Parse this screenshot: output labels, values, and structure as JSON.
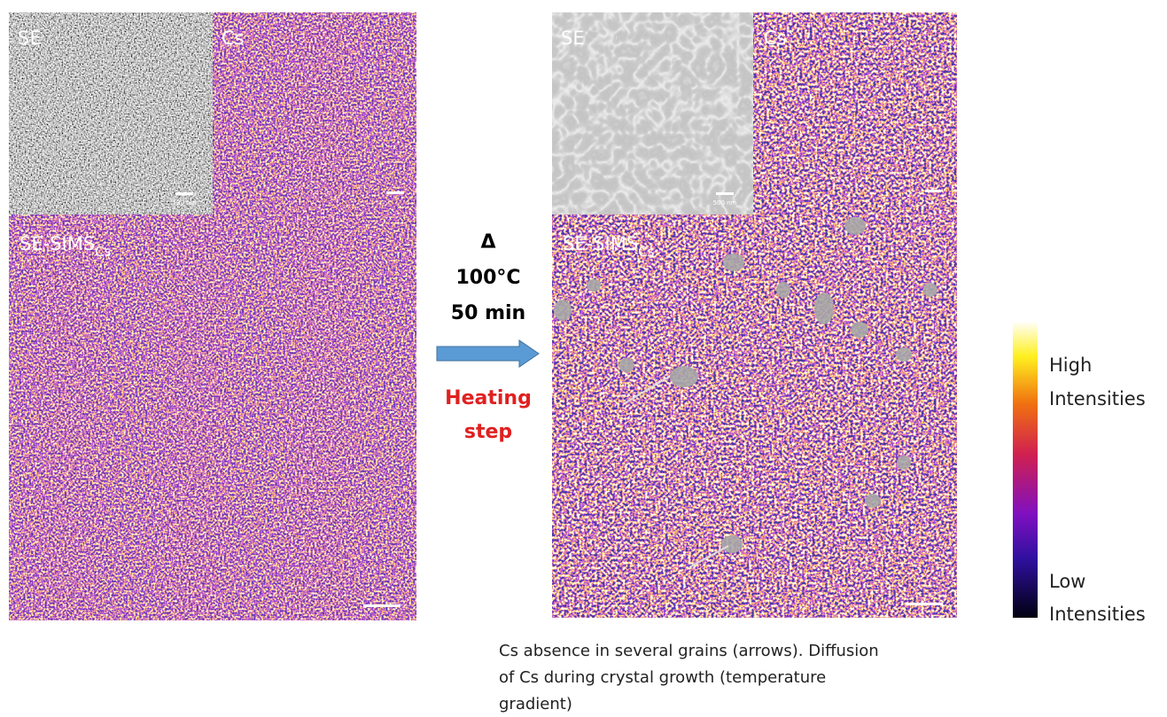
{
  "before": {
    "se_label": "SE",
    "cs_label": "Cs",
    "sims_label": "SE-SIMS",
    "sims_sub": "Cs",
    "scale_label": "500 nm"
  },
  "step": {
    "symbol": "Δ",
    "temperature": "100°C",
    "duration": "50 min",
    "heating_line1": "Heating",
    "heating_line2": "step"
  },
  "after": {
    "se_label": "SE",
    "cs_label": "Cs",
    "sims_label": "SE-SIMS",
    "sims_sub": "Cs",
    "scale_label": "500 nm"
  },
  "colorbar": {
    "high_line1": "High",
    "high_line2": "Intensities",
    "low_line1": "Low",
    "low_line2": "Intensities"
  },
  "caption": {
    "lines": [
      "Cs absence in several grains (arrows). Diffusion",
      "of Cs during crystal growth (temperature",
      "gradient)"
    ]
  }
}
